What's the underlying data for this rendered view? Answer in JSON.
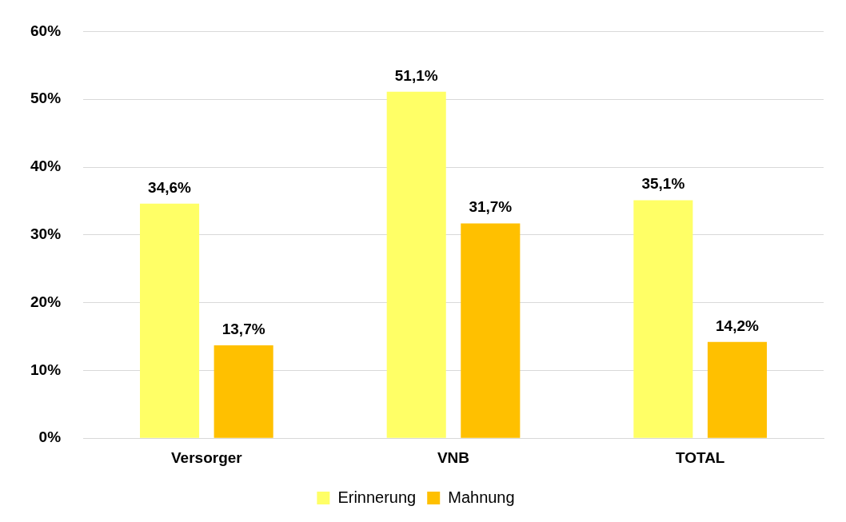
{
  "chart_data": {
    "type": "bar",
    "categories": [
      "Versorger",
      "VNB",
      "TOTAL"
    ],
    "series": [
      {
        "name": "Erinnerung",
        "color": "#ffff66",
        "values": [
          34.6,
          51.1,
          35.1
        ],
        "value_labels": [
          "34,6%",
          "51,1%",
          "35,1%"
        ]
      },
      {
        "name": "Mahnung",
        "color": "#ffc000",
        "values": [
          13.7,
          31.7,
          14.2
        ],
        "value_labels": [
          "13,7%",
          "31,7%",
          "14,2%"
        ]
      }
    ],
    "ylim": [
      0,
      60
    ],
    "yticks": [
      {
        "value": 0,
        "label": "0%"
      },
      {
        "value": 10,
        "label": "10%"
      },
      {
        "value": 20,
        "label": "20%"
      },
      {
        "value": 30,
        "label": "30%"
      },
      {
        "value": 40,
        "label": "40%"
      },
      {
        "value": 50,
        "label": "50%"
      },
      {
        "value": 60,
        "label": "60%"
      }
    ],
    "grid": "y",
    "legend": "bottom"
  }
}
